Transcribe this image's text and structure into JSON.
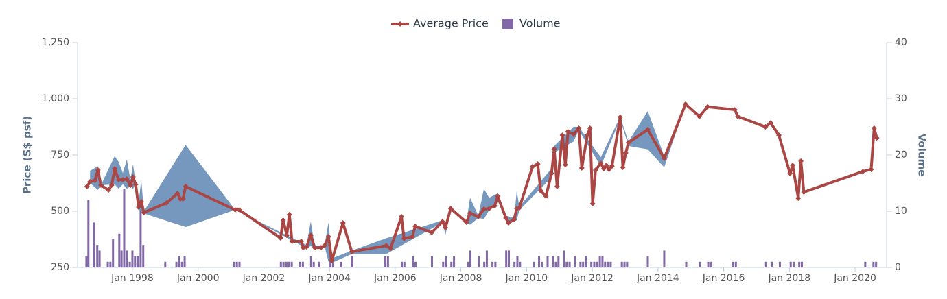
{
  "chart_data": {
    "type": "line",
    "y_title": "Price (S$ psf)",
    "y2_title": "Volume",
    "xlim": [
      1996.33,
      2020.96
    ],
    "xticks": [
      {
        "value": 1998,
        "label": "Jan 1998"
      },
      {
        "value": 2000,
        "label": "Jan 2000"
      },
      {
        "value": 2002,
        "label": "Jan 2002"
      },
      {
        "value": 2004,
        "label": "Jan 2004"
      },
      {
        "value": 2006,
        "label": "Jan 2006"
      },
      {
        "value": 2008,
        "label": "Jan 2008"
      },
      {
        "value": 2010,
        "label": "Jan 2010"
      },
      {
        "value": 2012,
        "label": "Jan 2012"
      },
      {
        "value": 2014,
        "label": "Jan 2014"
      },
      {
        "value": 2016,
        "label": "Jan 2016"
      },
      {
        "value": 2018,
        "label": "Jan 2018"
      },
      {
        "value": 2020,
        "label": "Jan 2020"
      }
    ],
    "ylim": [
      250,
      1250
    ],
    "yticks": [
      250,
      500,
      750,
      {
        "value": 1000,
        "label": "1,000"
      },
      {
        "value": 1250,
        "label": "1,250"
      }
    ],
    "y2lim": [
      0,
      40
    ],
    "y2ticks": [
      0,
      10,
      20,
      30,
      40
    ],
    "grid": false,
    "legend": "top",
    "range": {
      "color": "#4a76a8",
      "x": [
        1996.71,
        1996.95,
        1997.04,
        1997.46,
        1997.58,
        1997.71,
        1997.83,
        1997.94,
        1998.02,
        1998.1,
        1998.19,
        1998.27,
        1998.35,
        1999.62,
        2001.13,
        2003.3,
        2003.43,
        2003.55,
        2003.85,
        2003.97,
        2004.07,
        2004.68,
        2005.73,
        2007.44,
        2007.53,
        2007.69,
        2008.17,
        2008.28,
        2008.53,
        2008.7,
        2008.86,
        2009.12,
        2009.37,
        2009.62,
        2009.7,
        2009.78,
        2010.76,
        2010.84,
        2011.43,
        2011.59,
        2012.26,
        2012.85,
        2013.1,
        2013.69,
        2014.19,
        2014.84
      ],
      "low": [
        625,
        595,
        616,
        620,
        600,
        620,
        600,
        610,
        600,
        619,
        500,
        500,
        490,
        430,
        506,
        335,
        345,
        335,
        345,
        275,
        270,
        310,
        310,
        450,
        395,
        505,
        445,
        440,
        470,
        465,
        505,
        550,
        455,
        455,
        460,
        505,
        650,
        760,
        810,
        860,
        700,
        910,
        790,
        775,
        695,
        976
      ],
      "high": [
        680,
        700,
        616,
        745,
        720,
        670,
        730,
        640,
        710,
        619,
        540,
        640,
        500,
        795,
        506,
        350,
        455,
        345,
        350,
        450,
        290,
        325,
        380,
        460,
        440,
        515,
        455,
        560,
        480,
        600,
        560,
        580,
        480,
        470,
        590,
        520,
        690,
        790,
        875,
        875,
        740,
        920,
        810,
        945,
        745,
        976
      ]
    },
    "series": [
      {
        "name": "Average Price",
        "type": "line",
        "color": "#aa4643",
        "x": [
          1996.62,
          1996.71,
          1996.86,
          1996.95,
          1997.04,
          1997.27,
          1997.37,
          1997.46,
          1997.58,
          1997.71,
          1997.83,
          1997.94,
          1998.02,
          1998.1,
          1998.19,
          1998.27,
          1998.35,
          1999.04,
          1999.37,
          1999.46,
          1999.54,
          1999.62,
          2001.13,
          2001.25,
          2002.51,
          2002.59,
          2002.7,
          2002.78,
          2002.86,
          2003.14,
          2003.2,
          2003.3,
          2003.43,
          2003.55,
          2003.74,
          2003.85,
          2003.97,
          2004.07,
          2004.41,
          2004.68,
          2005.73,
          2005.86,
          2006.19,
          2006.27,
          2006.52,
          2006.61,
          2007.11,
          2007.44,
          2007.53,
          2007.69,
          2008.17,
          2008.28,
          2008.53,
          2008.7,
          2008.86,
          2009.03,
          2009.12,
          2009.37,
          2009.45,
          2009.62,
          2009.7,
          2009.78,
          2010.18,
          2010.34,
          2010.43,
          2010.59,
          2010.76,
          2010.84,
          2010.93,
          2011.09,
          2011.18,
          2011.26,
          2011.43,
          2011.59,
          2011.68,
          2011.85,
          2011.93,
          2012.01,
          2012.1,
          2012.26,
          2012.35,
          2012.43,
          2012.51,
          2012.6,
          2012.85,
          2012.93,
          2013.02,
          2013.1,
          2013.69,
          2014.19,
          2014.84,
          2015.26,
          2015.51,
          2016.34,
          2016.43,
          2017.27,
          2017.43,
          2017.68,
          2018.02,
          2018.1,
          2018.27,
          2018.35,
          2018.44,
          2020.24,
          2020.49,
          2020.58,
          2020.66
        ],
        "values": [
          610,
          631,
          637,
          683,
          616,
          594,
          616,
          689,
          640,
          640,
          643,
          616,
          652,
          619,
          518,
          543,
          494,
          537,
          579,
          555,
          555,
          610,
          506,
          506,
          381,
          460,
          393,
          485,
          366,
          366,
          338,
          341,
          393,
          338,
          338,
          347,
          387,
          280,
          448,
          320,
          347,
          335,
          476,
          378,
          387,
          433,
          405,
          454,
          427,
          512,
          451,
          491,
          476,
          509,
          512,
          524,
          567,
          470,
          448,
          463,
          512,
          515,
          698,
          710,
          591,
          567,
          668,
          777,
          610,
          838,
          707,
          854,
          842,
          869,
          692,
          838,
          869,
          534,
          683,
          713,
          689,
          704,
          686,
          701,
          918,
          695,
          759,
          805,
          863,
          735,
          976,
          921,
          964,
          951,
          921,
          875,
          893,
          838,
          668,
          704,
          558,
          723,
          585,
          677,
          686,
          869,
          826
        ]
      },
      {
        "name": "Volume",
        "type": "column",
        "axis": "y2",
        "color": "#8069a4",
        "x": [
          1996.6,
          1996.66,
          1996.83,
          1996.93,
          1997.0,
          1997.25,
          1997.33,
          1997.41,
          1997.6,
          1997.67,
          1997.75,
          1997.83,
          1997.92,
          1998.0,
          1998.08,
          1998.17,
          1998.25,
          1998.33,
          1999.0,
          1999.34,
          1999.42,
          1999.51,
          1999.59,
          2001.1,
          2001.18,
          2001.26,
          2002.52,
          2002.6,
          2002.69,
          2002.77,
          2002.85,
          2003.1,
          2003.19,
          2003.44,
          2003.52,
          2003.69,
          2004.03,
          2004.11,
          2004.36,
          2004.69,
          2005.7,
          2005.78,
          2006.2,
          2006.28,
          2006.54,
          2006.62,
          2007.12,
          2007.46,
          2007.54,
          2007.71,
          2007.79,
          2008.21,
          2008.29,
          2008.54,
          2008.71,
          2008.79,
          2008.96,
          2009.05,
          2009.38,
          2009.46,
          2009.63,
          2009.72,
          2009.8,
          2010.22,
          2010.38,
          2010.47,
          2010.64,
          2010.8,
          2010.89,
          2010.97,
          2011.14,
          2011.22,
          2011.31,
          2011.47,
          2011.64,
          2011.72,
          2011.81,
          2011.97,
          2012.06,
          2012.14,
          2012.23,
          2012.31,
          2012.39,
          2012.48,
          2012.56,
          2012.9,
          2012.98,
          2013.06,
          2013.69,
          2014.19,
          2014.86,
          2015.28,
          2015.53,
          2015.62,
          2016.28,
          2016.37,
          2017.29,
          2017.46,
          2017.71,
          2018.04,
          2018.13,
          2018.3,
          2018.38,
          2020.31,
          2020.56,
          2020.64
        ],
        "values": [
          2,
          12,
          8,
          4,
          3,
          1,
          1,
          5,
          6,
          3,
          14,
          3,
          1,
          3,
          2,
          2,
          10,
          4,
          1,
          1,
          2,
          1,
          2,
          1,
          1,
          1,
          1,
          1,
          1,
          1,
          1,
          1,
          1,
          2,
          1,
          1,
          3,
          1,
          1,
          2,
          2,
          2,
          1,
          1,
          2,
          1,
          2,
          1,
          2,
          1,
          2,
          1,
          3,
          2,
          1,
          3,
          1,
          1,
          3,
          3,
          1,
          2,
          1,
          1,
          2,
          1,
          2,
          2,
          1,
          2,
          3,
          1,
          1,
          2,
          1,
          1,
          2,
          1,
          1,
          1,
          2,
          2,
          1,
          1,
          1,
          1,
          1,
          1,
          2,
          3,
          1,
          1,
          1,
          1,
          1,
          1,
          1,
          1,
          1,
          1,
          1,
          1,
          1,
          1,
          1,
          1
        ]
      }
    ]
  }
}
